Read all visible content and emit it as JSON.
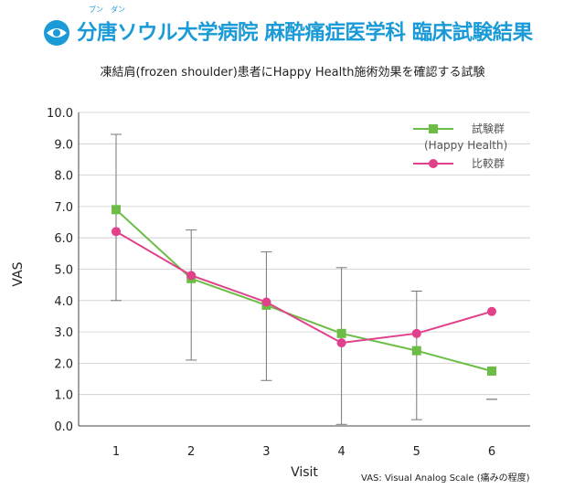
{
  "header": {
    "title": "分唐ソウル大学病院 麻酔痛症医学科 臨床試験結果",
    "ruby": [
      "ブン",
      "ダン"
    ]
  },
  "subtitle": "凍結肩(frozen shoulder)患者にHappy Health施術効果を確認する試験",
  "colors": {
    "title": "#1a9bd7",
    "series_test": "#6cbd45",
    "series_control": "#e0418a",
    "error_bar": "#777777",
    "grid": "#cccccc"
  },
  "footnote": "VAS: Visual Analog Scale (痛みの程度)",
  "chart_data": {
    "type": "line",
    "x": [
      1,
      2,
      3,
      4,
      5,
      6
    ],
    "xlabel": "Visit",
    "ylabel": "VAS",
    "ylim": [
      0,
      10
    ],
    "y_ticks": [
      "0.0",
      "1.0",
      "2.0",
      "3.0",
      "4.0",
      "5.0",
      "6.0",
      "7.0",
      "8.0",
      "9.0",
      "10.0"
    ],
    "grid": true,
    "legend_position": "top-right",
    "series": [
      {
        "name": "試験群",
        "name_line2": "(Happy Health)",
        "marker": "square",
        "values": [
          6.9,
          4.7,
          3.85,
          2.95,
          2.4,
          1.75
        ],
        "error_low": [
          4.0,
          2.1,
          1.45,
          0.05,
          0.2,
          0.85
        ],
        "error_high": [
          9.3,
          6.25,
          5.55,
          5.05,
          4.3,
          0.85
        ]
      },
      {
        "name": "比較群",
        "marker": "circle",
        "values": [
          6.2,
          4.8,
          3.95,
          2.65,
          2.95,
          3.65
        ]
      }
    ]
  }
}
